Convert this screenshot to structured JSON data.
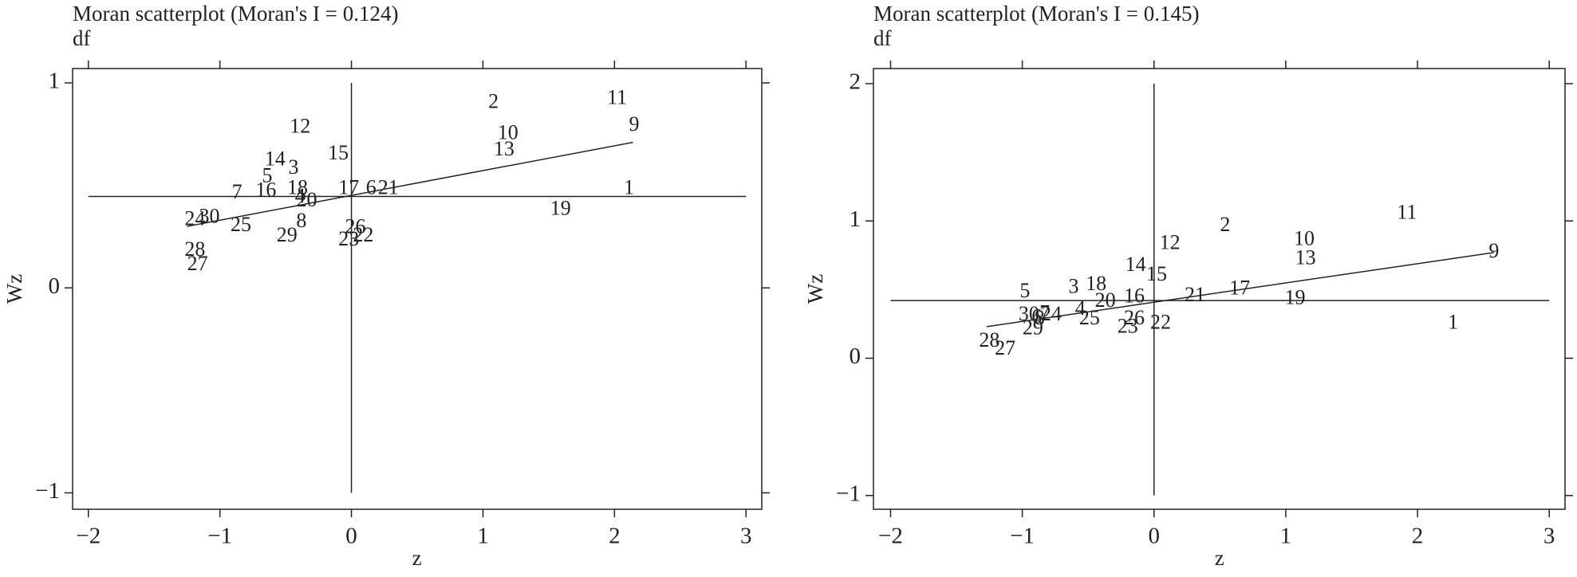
{
  "chart_data": [
    {
      "type": "scatter",
      "title": "Moran scatterplot (Moran's I = 0.124)",
      "subtitle": "df",
      "x_label": "z",
      "y_label": "Wz",
      "labels": [
        "1",
        "2",
        "3",
        "4",
        "5",
        "6",
        "7",
        "8",
        "9",
        "10",
        "11",
        "12",
        "13",
        "14",
        "15",
        "16",
        "17",
        "18",
        "19",
        "20",
        "21",
        "22",
        "23",
        "24",
        "25",
        "26",
        "27",
        "28",
        "29",
        "30"
      ],
      "x": [
        2.11,
        1.08,
        -0.44,
        -0.39,
        -0.64,
        0.15,
        -0.87,
        -0.38,
        2.15,
        1.19,
        2.02,
        -0.39,
        1.16,
        -0.58,
        -0.1,
        -0.65,
        -0.02,
        -0.41,
        1.59,
        -0.34,
        0.28,
        0.09,
        -0.02,
        -1.19,
        -0.84,
        0.03,
        -1.17,
        -1.19,
        -0.49,
        -1.08
      ],
      "y": [
        0.48,
        0.9,
        0.58,
        0.44,
        0.54,
        0.48,
        0.46,
        0.32,
        0.79,
        0.75,
        0.92,
        0.78,
        0.67,
        0.62,
        0.65,
        0.47,
        0.48,
        0.48,
        0.38,
        0.42,
        0.48,
        0.25,
        0.23,
        0.33,
        0.3,
        0.29,
        0.11,
        0.18,
        0.25,
        0.34
      ],
      "hline": 0.446,
      "vline": 0,
      "fit": {
        "x": [
          -1.25,
          2.14
        ],
        "y": [
          0.3,
          0.71
        ]
      },
      "xlim": [
        -2.12,
        3.12
      ],
      "ylim": [
        -1.08,
        1.07
      ],
      "xticks": [
        {
          "value": -2,
          "label": "−2"
        },
        {
          "value": -1,
          "label": "−1"
        },
        0,
        1,
        2,
        3
      ],
      "yticks": [
        {
          "value": -1,
          "label": "−1"
        },
        0,
        1
      ]
    },
    {
      "type": "scatter",
      "title": "Moran scatterplot (Moran's I = 0.145)",
      "subtitle": "df",
      "x_label": "z",
      "y_label": "Wz",
      "labels": [
        "1",
        "2",
        "3",
        "4",
        "5",
        "6",
        "7",
        "8",
        "9",
        "10",
        "11",
        "12",
        "13",
        "14",
        "15",
        "16",
        "17",
        "18",
        "19",
        "20",
        "21",
        "22",
        "23",
        "24",
        "25",
        "26",
        "27",
        "28",
        "29",
        "30"
      ],
      "x": [
        2.27,
        0.54,
        -0.61,
        -0.56,
        -0.98,
        -0.89,
        -0.83,
        -0.87,
        2.58,
        1.14,
        1.92,
        0.12,
        1.15,
        -0.14,
        0.02,
        -0.15,
        0.65,
        -0.44,
        1.07,
        -0.37,
        0.31,
        0.05,
        -0.2,
        -0.78,
        -0.49,
        -0.15,
        -1.13,
        -1.25,
        -0.92,
        -0.95
      ],
      "y": [
        0.25,
        0.96,
        0.51,
        0.35,
        0.48,
        0.29,
        0.32,
        0.28,
        0.77,
        0.86,
        1.05,
        0.83,
        0.72,
        0.67,
        0.6,
        0.44,
        0.5,
        0.53,
        0.43,
        0.41,
        0.45,
        0.25,
        0.22,
        0.31,
        0.28,
        0.28,
        0.06,
        0.12,
        0.21,
        0.31
      ],
      "hline": 0.42,
      "vline": 0,
      "fit": {
        "x": [
          -1.27,
          2.58
        ],
        "y": [
          0.23,
          0.77
        ]
      },
      "xlim": [
        -2.13,
        3.12
      ],
      "ylim": [
        -1.1,
        2.11
      ],
      "xticks": [
        {
          "value": -2,
          "label": "−2"
        },
        {
          "value": -1,
          "label": "−1"
        },
        0,
        1,
        2,
        3
      ],
      "yticks": [
        {
          "value": -1,
          "label": "−1"
        },
        0,
        1,
        2
      ]
    }
  ]
}
